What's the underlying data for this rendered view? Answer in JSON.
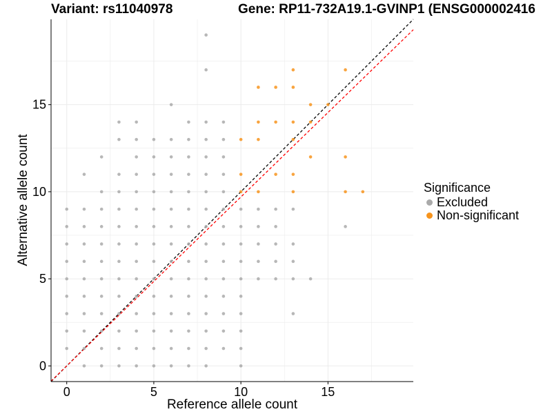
{
  "chart_data": {
    "type": "scatter",
    "title_left": "Variant: rs11040978",
    "title_right": "Gene: RP11-732A19.1-GVINP1 (ENSG000002416",
    "xlabel": "Reference allele count",
    "ylabel": "Alternative allele count",
    "xlim": [
      -0.9,
      19.9
    ],
    "ylim": [
      -0.9,
      19.9
    ],
    "xticks": [
      0,
      5,
      10,
      15
    ],
    "yticks": [
      0,
      5,
      10,
      15
    ],
    "grid": true,
    "legend": {
      "title": "Significance",
      "placement": "right",
      "items": [
        {
          "label": "Excluded",
          "color": "#aaaaaa"
        },
        {
          "label": "Non-significant",
          "color": "#f7941d"
        }
      ]
    },
    "reference_lines": [
      {
        "name": "identity",
        "slope": 1,
        "intercept": 0,
        "color": "#000000",
        "dash": true
      },
      {
        "name": "fit",
        "slope": 0.97,
        "intercept": 0,
        "color": "#ff0000",
        "dash": true
      }
    ],
    "series": [
      {
        "name": "Excluded",
        "color": "#aaaaaa",
        "points": [
          [
            0,
            1
          ],
          [
            0,
            2
          ],
          [
            0,
            3
          ],
          [
            0,
            4
          ],
          [
            0,
            5
          ],
          [
            0,
            6
          ],
          [
            0,
            7
          ],
          [
            0,
            8
          ],
          [
            0,
            9
          ],
          [
            1,
            0
          ],
          [
            1,
            1
          ],
          [
            1,
            2
          ],
          [
            1,
            3
          ],
          [
            1,
            4
          ],
          [
            1,
            5
          ],
          [
            1,
            6
          ],
          [
            1,
            7
          ],
          [
            1,
            8
          ],
          [
            1,
            9
          ],
          [
            1,
            11
          ],
          [
            2,
            0
          ],
          [
            2,
            1
          ],
          [
            2,
            2
          ],
          [
            2,
            3
          ],
          [
            2,
            4
          ],
          [
            2,
            5
          ],
          [
            2,
            6
          ],
          [
            2,
            7
          ],
          [
            2,
            8
          ],
          [
            2,
            9
          ],
          [
            2,
            10
          ],
          [
            2,
            12
          ],
          [
            3,
            0
          ],
          [
            3,
            1
          ],
          [
            3,
            2
          ],
          [
            3,
            3
          ],
          [
            3,
            4
          ],
          [
            3,
            5
          ],
          [
            3,
            6
          ],
          [
            3,
            7
          ],
          [
            3,
            8
          ],
          [
            3,
            9
          ],
          [
            3,
            10
          ],
          [
            3,
            11
          ],
          [
            3,
            13
          ],
          [
            3,
            14
          ],
          [
            4,
            0
          ],
          [
            4,
            1
          ],
          [
            4,
            2
          ],
          [
            4,
            3
          ],
          [
            4,
            4
          ],
          [
            4,
            5
          ],
          [
            4,
            6
          ],
          [
            4,
            7
          ],
          [
            4,
            8
          ],
          [
            4,
            9
          ],
          [
            4,
            10
          ],
          [
            4,
            11
          ],
          [
            4,
            12
          ],
          [
            4,
            13
          ],
          [
            4,
            14
          ],
          [
            5,
            0
          ],
          [
            5,
            1
          ],
          [
            5,
            2
          ],
          [
            5,
            3
          ],
          [
            5,
            4
          ],
          [
            5,
            5
          ],
          [
            5,
            6
          ],
          [
            5,
            7
          ],
          [
            5,
            8
          ],
          [
            5,
            9
          ],
          [
            5,
            10
          ],
          [
            5,
            11
          ],
          [
            5,
            12
          ],
          [
            5,
            13
          ],
          [
            6,
            0
          ],
          [
            6,
            1
          ],
          [
            6,
            2
          ],
          [
            6,
            3
          ],
          [
            6,
            4
          ],
          [
            6,
            5
          ],
          [
            6,
            6
          ],
          [
            6,
            7
          ],
          [
            6,
            8
          ],
          [
            6,
            9
          ],
          [
            6,
            10
          ],
          [
            6,
            11
          ],
          [
            6,
            12
          ],
          [
            6,
            13
          ],
          [
            6,
            15
          ],
          [
            7,
            0
          ],
          [
            7,
            1
          ],
          [
            7,
            2
          ],
          [
            7,
            3
          ],
          [
            7,
            4
          ],
          [
            7,
            5
          ],
          [
            7,
            6
          ],
          [
            7,
            7
          ],
          [
            7,
            8
          ],
          [
            7,
            9
          ],
          [
            7,
            10
          ],
          [
            7,
            11
          ],
          [
            7,
            12
          ],
          [
            7,
            13
          ],
          [
            7,
            14
          ],
          [
            8,
            0
          ],
          [
            8,
            1
          ],
          [
            8,
            2
          ],
          [
            8,
            3
          ],
          [
            8,
            4
          ],
          [
            8,
            5
          ],
          [
            8,
            6
          ],
          [
            8,
            7
          ],
          [
            8,
            8
          ],
          [
            8,
            9
          ],
          [
            8,
            10
          ],
          [
            8,
            11
          ],
          [
            8,
            12
          ],
          [
            8,
            13
          ],
          [
            8,
            14
          ],
          [
            8,
            17
          ],
          [
            8,
            19
          ],
          [
            9,
            1
          ],
          [
            9,
            2
          ],
          [
            9,
            3
          ],
          [
            9,
            4
          ],
          [
            9,
            5
          ],
          [
            9,
            6
          ],
          [
            9,
            7
          ],
          [
            9,
            8
          ],
          [
            9,
            9
          ],
          [
            9,
            10
          ],
          [
            9,
            11
          ],
          [
            9,
            12
          ],
          [
            9,
            13
          ],
          [
            9,
            14
          ],
          [
            10,
            0
          ],
          [
            10,
            1
          ],
          [
            10,
            2
          ],
          [
            10,
            3
          ],
          [
            10,
            4
          ],
          [
            10,
            5
          ],
          [
            10,
            6
          ],
          [
            10,
            7
          ],
          [
            10,
            8
          ],
          [
            10,
            9
          ],
          [
            11,
            5
          ],
          [
            11,
            6
          ],
          [
            11,
            7
          ],
          [
            11,
            8
          ],
          [
            11,
            9
          ],
          [
            12,
            5
          ],
          [
            12,
            6
          ],
          [
            12,
            7
          ],
          [
            12,
            8
          ],
          [
            12,
            9
          ],
          [
            13,
            3
          ],
          [
            13,
            5
          ],
          [
            13,
            6
          ],
          [
            13,
            7
          ],
          [
            13,
            9
          ],
          [
            14,
            5
          ],
          [
            16,
            8
          ]
        ]
      },
      {
        "name": "Non-significant",
        "color": "#f7941d",
        "points": [
          [
            10,
            10
          ],
          [
            10,
            11
          ],
          [
            10,
            13
          ],
          [
            11,
            10
          ],
          [
            11,
            13
          ],
          [
            11,
            14
          ],
          [
            11,
            16
          ],
          [
            12,
            11
          ],
          [
            12,
            14
          ],
          [
            12,
            16
          ],
          [
            13,
            10
          ],
          [
            13,
            11
          ],
          [
            13,
            13
          ],
          [
            13,
            14
          ],
          [
            13,
            16
          ],
          [
            13,
            17
          ],
          [
            14,
            12
          ],
          [
            14,
            14
          ],
          [
            14,
            15
          ],
          [
            15,
            15
          ],
          [
            16,
            10
          ],
          [
            16,
            12
          ],
          [
            16,
            17
          ],
          [
            17,
            10
          ]
        ]
      }
    ]
  }
}
